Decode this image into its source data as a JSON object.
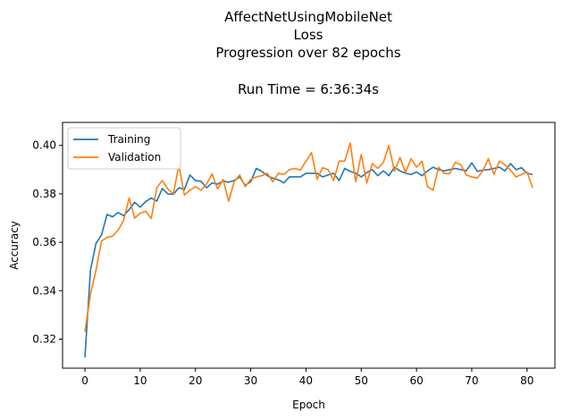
{
  "chart_data": {
    "type": "line",
    "title_lines": [
      "AffectNetUsingMobileNet",
      "Loss",
      "Progression over 82 epochs",
      "",
      "Run Time = 6:36:34s"
    ],
    "xlabel": "Epoch",
    "ylabel": "Accuracy",
    "xlim": [
      -4.05,
      85.05
    ],
    "ylim": [
      0.308,
      0.4095
    ],
    "xticks": [
      0,
      10,
      20,
      30,
      40,
      50,
      60,
      70,
      80
    ],
    "yticks": [
      0.32,
      0.34,
      0.36,
      0.38,
      0.4
    ],
    "ytick_labels": [
      "0.32",
      "0.34",
      "0.36",
      "0.38",
      "0.40"
    ],
    "grid": false,
    "legend_position": "upper-left",
    "series": [
      {
        "name": "Training",
        "color": "#1f77b4",
        "values": [
          0.3125,
          0.3485,
          0.3595,
          0.363,
          0.3715,
          0.3705,
          0.3723,
          0.371,
          0.3735,
          0.3765,
          0.3745,
          0.3768,
          0.3783,
          0.377,
          0.3822,
          0.38,
          0.3798,
          0.3825,
          0.3818,
          0.3878,
          0.3855,
          0.3852,
          0.3825,
          0.3845,
          0.384,
          0.3853,
          0.3848,
          0.3855,
          0.387,
          0.3835,
          0.385,
          0.3905,
          0.3893,
          0.3875,
          0.3865,
          0.3858,
          0.3845,
          0.387,
          0.387,
          0.387,
          0.3885,
          0.3885,
          0.3885,
          0.387,
          0.3878,
          0.3885,
          0.3855,
          0.3905,
          0.3893,
          0.3885,
          0.387,
          0.3888,
          0.39,
          0.3875,
          0.3895,
          0.3875,
          0.391,
          0.3895,
          0.3885,
          0.388,
          0.389,
          0.3875,
          0.3895,
          0.391,
          0.39,
          0.3895,
          0.39,
          0.3905,
          0.39,
          0.3895,
          0.3928,
          0.3893,
          0.3898,
          0.39,
          0.3905,
          0.391,
          0.3895,
          0.3925,
          0.39,
          0.3908,
          0.3885,
          0.388
        ]
      },
      {
        "name": "Validation",
        "color": "#ff7f0e",
        "values": [
          0.323,
          0.3385,
          0.3485,
          0.3605,
          0.362,
          0.3625,
          0.365,
          0.369,
          0.3783,
          0.37,
          0.372,
          0.3728,
          0.3698,
          0.3825,
          0.3855,
          0.382,
          0.38,
          0.3918,
          0.3795,
          0.3815,
          0.383,
          0.3815,
          0.384,
          0.3883,
          0.382,
          0.386,
          0.377,
          0.385,
          0.3878,
          0.383,
          0.386,
          0.387,
          0.3875,
          0.3885,
          0.385,
          0.3885,
          0.388,
          0.39,
          0.3905,
          0.3898,
          0.3935,
          0.397,
          0.386,
          0.3908,
          0.39,
          0.3855,
          0.3935,
          0.3935,
          0.401,
          0.385,
          0.3963,
          0.3845,
          0.3925,
          0.3905,
          0.393,
          0.4,
          0.3893,
          0.395,
          0.3888,
          0.3945,
          0.391,
          0.3935,
          0.383,
          0.3815,
          0.391,
          0.3885,
          0.3883,
          0.393,
          0.392,
          0.3878,
          0.387,
          0.3865,
          0.3895,
          0.3945,
          0.388,
          0.3935,
          0.392,
          0.3898,
          0.387,
          0.388,
          0.389,
          0.3825
        ]
      }
    ]
  }
}
